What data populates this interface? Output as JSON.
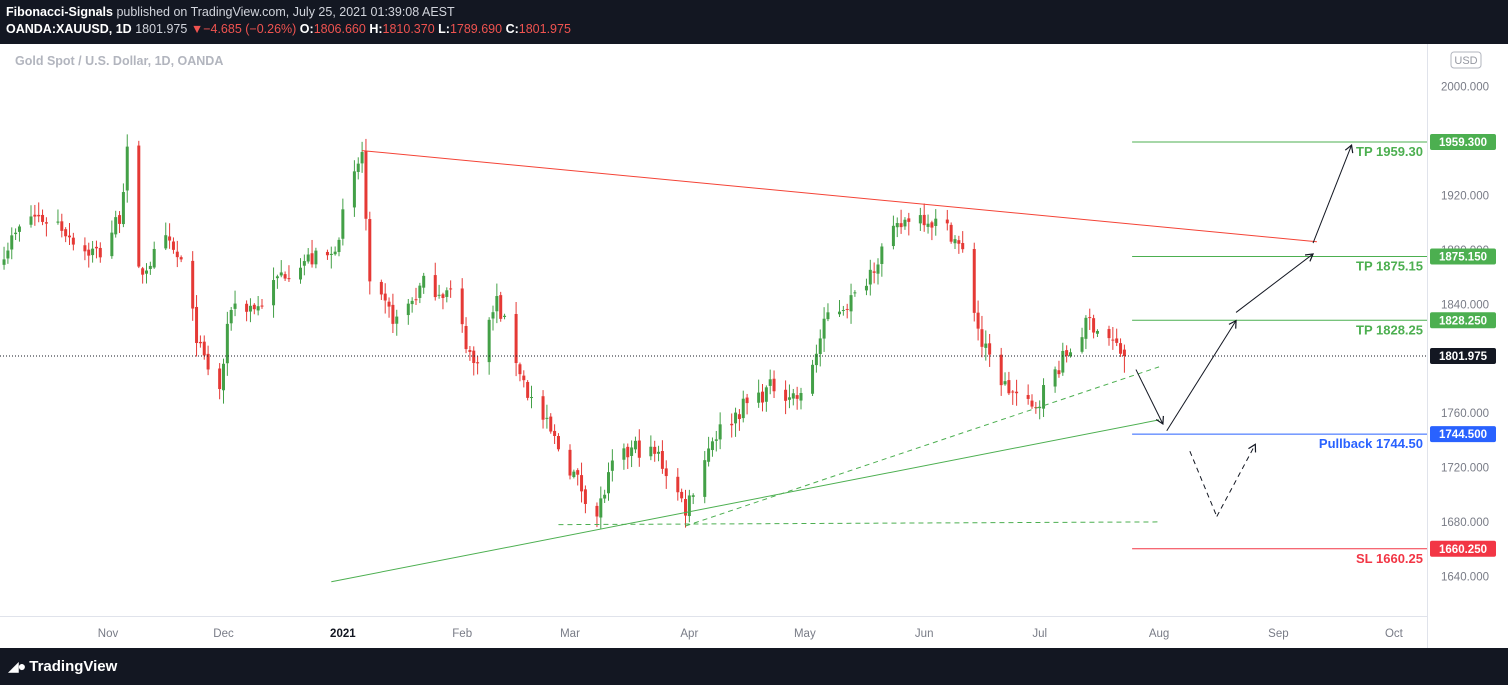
{
  "header": {
    "author": "Fibonacci-Signals",
    "published_text": "published on TradingView.com, July 25, 2021 01:39:08 AEST",
    "symbol": "OANDA:XAUUSD, 1D",
    "last": "1801.975",
    "change_arrow": "▼",
    "change": "−4.685 (−0.26%)",
    "open_label": "O:",
    "open": "1806.660",
    "high_label": "H:",
    "high": "1810.370",
    "low_label": "L:",
    "low": "1789.690",
    "close_label": "C:",
    "close": "1801.975"
  },
  "footer": {
    "logo_icon": "tradingview-logo-icon",
    "brand": "TradingView"
  },
  "colors": {
    "up": "#43a047",
    "down": "#e53935",
    "tp": "#4caf50",
    "pullback": "#2962ff",
    "sl": "#f23645",
    "resistance": "#f44336",
    "support": "#4caf50",
    "current": "#131722"
  },
  "chart_data": {
    "type": "candlestick",
    "title": "Gold Spot / U.S. Dollar, 1D, OANDA",
    "currency_badge": "USD",
    "ylim": [
      1627,
      2024
    ],
    "y_ticks": [
      1640,
      1680,
      1720,
      1760,
      1800,
      1840,
      1880,
      1920,
      1960,
      2000
    ],
    "y_tick_labels": [
      "1640.000",
      "1680.000",
      "1720.000",
      "1760.000",
      "1800.000",
      "1840.000",
      "1880.000",
      "1920.000",
      "1960.000",
      "2000.000"
    ],
    "x_labels": [
      {
        "label": "Nov",
        "date": "2020-11-01"
      },
      {
        "label": "Dec",
        "date": "2020-12-01"
      },
      {
        "label": "2021",
        "date": "2021-01-01",
        "bold": true
      },
      {
        "label": "Feb",
        "date": "2021-02-01"
      },
      {
        "label": "Mar",
        "date": "2021-03-01"
      },
      {
        "label": "Apr",
        "date": "2021-04-01"
      },
      {
        "label": "May",
        "date": "2021-05-01"
      },
      {
        "label": "Jun",
        "date": "2021-06-01"
      },
      {
        "label": "Jul",
        "date": "2021-07-01"
      },
      {
        "label": "Aug",
        "date": "2021-08-01"
      },
      {
        "label": "Sep",
        "date": "2021-09-01"
      },
      {
        "label": "Oct",
        "date": "2021-10-01"
      }
    ],
    "close_path": [
      [
        "2020-10-05",
        1880
      ],
      [
        "2020-10-12",
        1905
      ],
      [
        "2020-10-19",
        1900
      ],
      [
        "2020-10-26",
        1880
      ],
      [
        "2020-10-30",
        1878
      ],
      [
        "2020-11-04",
        1905
      ],
      [
        "2020-11-06",
        1950
      ],
      [
        "2020-11-09",
        1862
      ],
      [
        "2020-11-16",
        1885
      ],
      [
        "2020-11-20",
        1870
      ],
      [
        "2020-11-25",
        1805
      ],
      [
        "2020-11-30",
        1776
      ],
      [
        "2020-12-03",
        1840
      ],
      [
        "2020-12-10",
        1838
      ],
      [
        "2020-12-16",
        1862
      ],
      [
        "2020-12-21",
        1872
      ],
      [
        "2020-12-29",
        1875
      ],
      [
        "2021-01-06",
        1952
      ],
      [
        "2021-01-08",
        1850
      ],
      [
        "2021-01-15",
        1828
      ],
      [
        "2021-01-22",
        1855
      ],
      [
        "2021-01-29",
        1848
      ],
      [
        "2021-02-04",
        1795
      ],
      [
        "2021-02-10",
        1842
      ],
      [
        "2021-02-18",
        1775
      ],
      [
        "2021-02-26",
        1735
      ],
      [
        "2021-03-05",
        1700
      ],
      [
        "2021-03-08",
        1685
      ],
      [
        "2021-03-12",
        1720
      ],
      [
        "2021-03-18",
        1735
      ],
      [
        "2021-03-24",
        1728
      ],
      [
        "2021-03-31",
        1690
      ],
      [
        "2021-04-07",
        1742
      ],
      [
        "2021-04-15",
        1765
      ],
      [
        "2021-04-23",
        1780
      ],
      [
        "2021-04-30",
        1770
      ],
      [
        "2021-05-07",
        1832
      ],
      [
        "2021-05-14",
        1845
      ],
      [
        "2021-05-21",
        1880
      ],
      [
        "2021-05-28",
        1905
      ],
      [
        "2021-06-01",
        1905
      ],
      [
        "2021-06-08",
        1893
      ],
      [
        "2021-06-11",
        1877
      ],
      [
        "2021-06-16",
        1810
      ],
      [
        "2021-06-22",
        1780
      ],
      [
        "2021-06-29",
        1762
      ],
      [
        "2021-07-06",
        1795
      ],
      [
        "2021-07-14",
        1828
      ],
      [
        "2021-07-19",
        1815
      ],
      [
        "2021-07-23",
        1801.975
      ]
    ],
    "candle_range": {
      "start": "2020-10-05",
      "end": "2021-07-23"
    },
    "last_price": 1801.975,
    "last_price_label": "1801.975",
    "levels": [
      {
        "kind": "tp",
        "price": 1959.3,
        "text": "TP 1959.30",
        "axis_label": "1959.300"
      },
      {
        "kind": "tp",
        "price": 1875.15,
        "text": "TP 1875.15",
        "axis_label": "1875.150"
      },
      {
        "kind": "tp",
        "price": 1828.25,
        "text": "TP 1828.25",
        "axis_label": "1828.250"
      },
      {
        "kind": "pullback",
        "price": 1744.5,
        "text": "Pullback 1744.50",
        "axis_label": "1744.500"
      },
      {
        "kind": "sl",
        "price": 1660.25,
        "text": "SL 1660.25",
        "axis_label": "1660.250"
      }
    ],
    "level_line_start": "2021-07-25",
    "trendlines": [
      {
        "kind": "resistance",
        "from": [
          "2021-01-06",
          1953
        ],
        "to": [
          "2021-09-11",
          1886
        ],
        "style": "solid"
      },
      {
        "kind": "support",
        "from": [
          "2020-12-29",
          1636
        ],
        "to": [
          "2021-08-01",
          1755
        ],
        "style": "solid"
      },
      {
        "kind": "support",
        "from": [
          "2021-03-31",
          1677
        ],
        "to": [
          "2021-08-01",
          1794
        ],
        "style": "dashed"
      },
      {
        "kind": "support",
        "from": [
          "2021-02-26",
          1678
        ],
        "to": [
          "2021-08-01",
          1680
        ],
        "style": "dashed"
      }
    ],
    "arrows": [
      {
        "from": [
          "2021-07-26",
          1792
        ],
        "to": [
          "2021-08-02",
          1752
        ],
        "style": "solid"
      },
      {
        "from": [
          "2021-08-03",
          1747
        ],
        "to": [
          "2021-08-21",
          1828
        ],
        "style": "solid"
      },
      {
        "from": [
          "2021-08-21",
          1834
        ],
        "to": [
          "2021-09-10",
          1877
        ],
        "style": "solid"
      },
      {
        "from": [
          "2021-09-10",
          1885
        ],
        "to": [
          "2021-09-20",
          1957
        ],
        "style": "solid"
      },
      {
        "from": [
          "2021-08-09",
          1732
        ],
        "to": [
          "2021-08-16",
          1684
        ],
        "style": "dashed"
      },
      {
        "from": [
          "2021-08-16",
          1684
        ],
        "to": [
          "2021-08-26",
          1737
        ],
        "style": "dashed"
      }
    ],
    "grid": false,
    "legend": "top-left"
  }
}
